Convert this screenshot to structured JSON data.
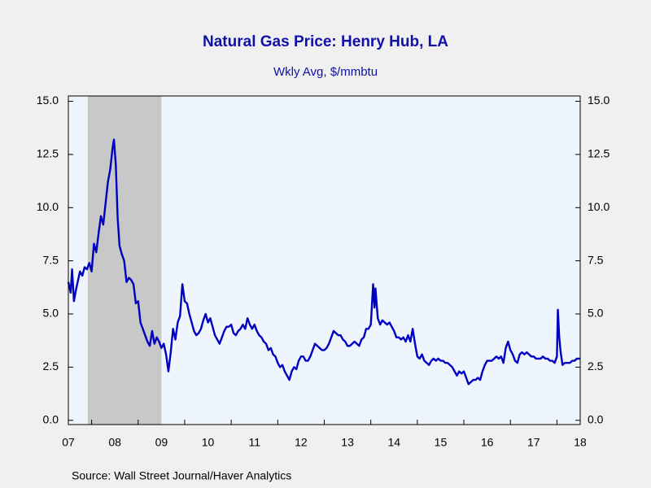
{
  "chart_data": {
    "type": "line",
    "title": "Natural Gas Price: Henry Hub, LA",
    "subtitle": "Wkly Avg, $/mmbtu",
    "source": "Source:  Wall Street Journal/Haver Analytics",
    "xlim": [
      2007.5,
      2018.5
    ],
    "xticks": [
      {
        "value": 2007.5,
        "label": "07"
      },
      {
        "value": 2008.5,
        "label": "08"
      },
      {
        "value": 2009.5,
        "label": "09"
      },
      {
        "value": 2010.5,
        "label": "10"
      },
      {
        "value": 2011.5,
        "label": "11"
      },
      {
        "value": 2012.5,
        "label": "12"
      },
      {
        "value": 2013.5,
        "label": "13"
      },
      {
        "value": 2014.5,
        "label": "14"
      },
      {
        "value": 2015.5,
        "label": "15"
      },
      {
        "value": 2016.5,
        "label": "16"
      },
      {
        "value": 2017.5,
        "label": "17"
      },
      {
        "value": 2018.5,
        "label": "18"
      }
    ],
    "xtick_marks": [
      2008,
      2009,
      2010,
      2011,
      2012,
      2013,
      2014,
      2015,
      2016,
      2017,
      2018
    ],
    "ylim": [
      -0.2,
      15.25
    ],
    "yticks": [
      {
        "value": 0,
        "label": "0.0"
      },
      2.5,
      {
        "value": 5,
        "label": "5.0"
      },
      7.5,
      {
        "value": 10,
        "label": "10.0"
      },
      12.5,
      {
        "value": 15,
        "label": "15.0"
      }
    ],
    "shaded": [
      2007.917,
      2009.5
    ],
    "shade_color": "#c8c8c8",
    "plot_background": "#eef5fd",
    "x": [
      2007.5,
      2007.55,
      2007.58,
      2007.62,
      2007.67,
      2007.75,
      2007.8,
      2007.85,
      2007.9,
      2007.95,
      2008.0,
      2008.05,
      2008.1,
      2008.15,
      2008.2,
      2008.25,
      2008.3,
      2008.35,
      2008.4,
      2008.45,
      2008.48,
      2008.52,
      2008.56,
      2008.6,
      2008.65,
      2008.7,
      2008.75,
      2008.8,
      2008.85,
      2008.9,
      2008.95,
      2009.0,
      2009.05,
      2009.1,
      2009.15,
      2009.2,
      2009.25,
      2009.3,
      2009.35,
      2009.4,
      2009.45,
      2009.5,
      2009.55,
      2009.6,
      2009.65,
      2009.7,
      2009.75,
      2009.8,
      2009.85,
      2009.9,
      2009.95,
      2010.0,
      2010.05,
      2010.1,
      2010.15,
      2010.2,
      2010.25,
      2010.3,
      2010.35,
      2010.4,
      2010.45,
      2010.5,
      2010.55,
      2010.6,
      2010.65,
      2010.7,
      2010.75,
      2010.8,
      2010.85,
      2010.9,
      2010.95,
      2011.0,
      2011.05,
      2011.1,
      2011.15,
      2011.2,
      2011.25,
      2011.3,
      2011.35,
      2011.4,
      2011.45,
      2011.5,
      2011.55,
      2011.6,
      2011.65,
      2011.7,
      2011.75,
      2011.8,
      2011.85,
      2011.9,
      2011.95,
      2012.0,
      2012.05,
      2012.1,
      2012.15,
      2012.2,
      2012.25,
      2012.3,
      2012.35,
      2012.4,
      2012.45,
      2012.5,
      2012.55,
      2012.6,
      2012.65,
      2012.7,
      2012.75,
      2012.8,
      2012.85,
      2012.9,
      2012.95,
      2013.0,
      2013.05,
      2013.1,
      2013.15,
      2013.2,
      2013.25,
      2013.3,
      2013.35,
      2013.4,
      2013.45,
      2013.5,
      2013.55,
      2013.6,
      2013.65,
      2013.7,
      2013.75,
      2013.8,
      2013.85,
      2013.9,
      2013.95,
      2014.0,
      2014.05,
      2014.08,
      2014.1,
      2014.15,
      2014.2,
      2014.25,
      2014.3,
      2014.35,
      2014.4,
      2014.45,
      2014.5,
      2014.55,
      2014.6,
      2014.65,
      2014.7,
      2014.75,
      2014.8,
      2014.85,
      2014.9,
      2014.95,
      2015.0,
      2015.05,
      2015.1,
      2015.15,
      2015.2,
      2015.25,
      2015.3,
      2015.35,
      2015.4,
      2015.45,
      2015.5,
      2015.55,
      2015.6,
      2015.65,
      2015.7,
      2015.75,
      2015.8,
      2015.85,
      2015.9,
      2015.95,
      2016.0,
      2016.05,
      2016.1,
      2016.15,
      2016.2,
      2016.25,
      2016.3,
      2016.35,
      2016.4,
      2016.45,
      2016.5,
      2016.55,
      2016.6,
      2016.65,
      2016.7,
      2016.75,
      2016.8,
      2016.85,
      2016.9,
      2016.95,
      2017.0,
      2017.05,
      2017.1,
      2017.15,
      2017.2,
      2017.25,
      2017.3,
      2017.35,
      2017.4,
      2017.45,
      2017.5,
      2017.55,
      2017.6,
      2017.65,
      2017.7,
      2017.75,
      2017.8,
      2017.85,
      2017.9,
      2017.95,
      2018.0,
      2018.02,
      2018.05,
      2018.08,
      2018.12,
      2018.17,
      2018.22,
      2018.28,
      2018.33,
      2018.38,
      2018.43,
      2018.5
    ],
    "series": [
      {
        "name": "Natural Gas Price",
        "color": "#0000c0",
        "values": [
          6.5,
          6.0,
          7.1,
          5.6,
          6.2,
          7.0,
          6.8,
          7.2,
          7.1,
          7.4,
          7.0,
          8.3,
          7.9,
          8.8,
          9.6,
          9.2,
          10.2,
          11.2,
          11.8,
          12.8,
          13.2,
          12.0,
          9.5,
          8.2,
          7.8,
          7.5,
          6.5,
          6.7,
          6.6,
          6.4,
          5.5,
          5.6,
          4.6,
          4.3,
          4.0,
          3.7,
          3.5,
          4.2,
          3.6,
          3.9,
          3.7,
          3.4,
          3.6,
          3.1,
          2.3,
          3.2,
          4.3,
          3.8,
          4.6,
          4.9,
          6.4,
          5.6,
          5.5,
          5.0,
          4.6,
          4.2,
          4.0,
          4.1,
          4.3,
          4.7,
          5.0,
          4.6,
          4.8,
          4.4,
          4.0,
          3.8,
          3.6,
          3.9,
          4.2,
          4.4,
          4.4,
          4.5,
          4.1,
          4.0,
          4.2,
          4.3,
          4.5,
          4.3,
          4.8,
          4.5,
          4.3,
          4.5,
          4.2,
          4.0,
          3.9,
          3.7,
          3.6,
          3.3,
          3.4,
          3.1,
          3.0,
          2.7,
          2.5,
          2.6,
          2.3,
          2.1,
          1.9,
          2.3,
          2.5,
          2.4,
          2.8,
          3.0,
          3.0,
          2.8,
          2.8,
          3.0,
          3.3,
          3.6,
          3.5,
          3.4,
          3.3,
          3.3,
          3.4,
          3.6,
          3.9,
          4.2,
          4.1,
          4.0,
          4.0,
          3.8,
          3.7,
          3.5,
          3.5,
          3.6,
          3.7,
          3.6,
          3.5,
          3.8,
          3.9,
          4.3,
          4.3,
          4.5,
          6.4,
          5.3,
          6.2,
          4.8,
          4.5,
          4.7,
          4.6,
          4.5,
          4.6,
          4.4,
          4.2,
          3.9,
          3.9,
          3.8,
          3.9,
          3.7,
          4.0,
          3.7,
          4.3,
          3.6,
          3.0,
          2.9,
          3.1,
          2.8,
          2.7,
          2.6,
          2.8,
          2.9,
          2.8,
          2.9,
          2.8,
          2.8,
          2.7,
          2.7,
          2.6,
          2.5,
          2.3,
          2.1,
          2.3,
          2.2,
          2.3,
          2.0,
          1.7,
          1.8,
          1.9,
          1.9,
          2.0,
          1.9,
          2.3,
          2.6,
          2.8,
          2.8,
          2.8,
          2.9,
          3.0,
          2.9,
          3.0,
          2.7,
          3.4,
          3.7,
          3.3,
          3.1,
          2.8,
          2.7,
          3.1,
          3.2,
          3.1,
          3.2,
          3.1,
          3.0,
          3.0,
          2.9,
          2.9,
          2.9,
          3.0,
          2.9,
          2.9,
          2.8,
          2.8,
          2.7,
          3.0,
          5.2,
          3.9,
          3.2,
          2.6,
          2.7,
          2.7,
          2.7,
          2.8,
          2.8,
          2.9,
          2.9
        ]
      }
    ]
  }
}
